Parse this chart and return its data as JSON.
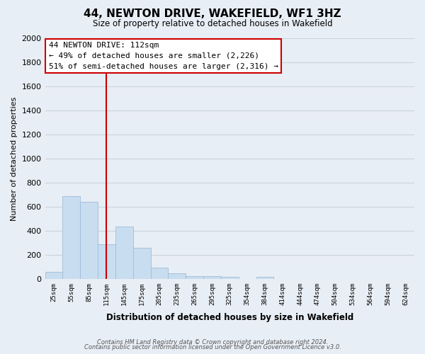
{
  "title": "44, NEWTON DRIVE, WAKEFIELD, WF1 3HZ",
  "subtitle": "Size of property relative to detached houses in Wakefield",
  "xlabel": "Distribution of detached houses by size in Wakefield",
  "ylabel": "Number of detached properties",
  "bin_labels": [
    "25sqm",
    "55sqm",
    "85sqm",
    "115sqm",
    "145sqm",
    "175sqm",
    "205sqm",
    "235sqm",
    "265sqm",
    "295sqm",
    "325sqm",
    "354sqm",
    "384sqm",
    "414sqm",
    "444sqm",
    "474sqm",
    "504sqm",
    "534sqm",
    "564sqm",
    "594sqm",
    "624sqm"
  ],
  "bar_heights": [
    55,
    690,
    640,
    285,
    435,
    255,
    90,
    45,
    25,
    20,
    15,
    0,
    15,
    0,
    0,
    0,
    0,
    0,
    0,
    0,
    0
  ],
  "bar_color": "#c8ddef",
  "bar_edge_color": "#a0bdd8",
  "vline_x_label": "115sqm",
  "vline_color": "#cc0000",
  "ylim": [
    0,
    2000
  ],
  "yticks": [
    0,
    200,
    400,
    600,
    800,
    1000,
    1200,
    1400,
    1600,
    1800,
    2000
  ],
  "annotation_title": "44 NEWTON DRIVE: 112sqm",
  "annotation_line1": "← 49% of detached houses are smaller (2,226)",
  "annotation_line2": "51% of semi-detached houses are larger (2,316) →",
  "annotation_box_color": "#ffffff",
  "annotation_box_edge": "#cc0000",
  "footer_line1": "Contains HM Land Registry data © Crown copyright and database right 2024.",
  "footer_line2": "Contains public sector information licensed under the Open Government Licence v3.0.",
  "background_color": "#e8eef5",
  "plot_background_color": "#e8eef5",
  "grid_color": "#c8d4e0"
}
